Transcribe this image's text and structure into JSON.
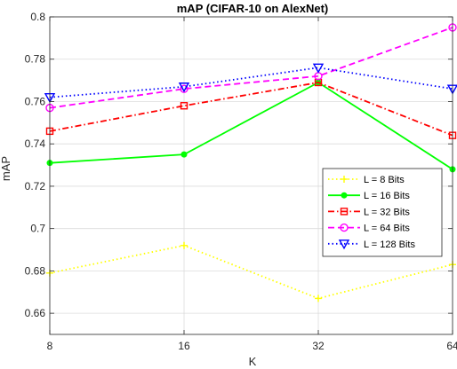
{
  "chart_data": {
    "type": "line",
    "title": "mAP (CIFAR-10 on AlexNet)",
    "xlabel": "K",
    "ylabel": "mAP",
    "categories": [
      "8",
      "16",
      "32",
      "64"
    ],
    "ylim": [
      0.65,
      0.8
    ],
    "yticks": [
      "0.66",
      "0.68",
      "0.7",
      "0.72",
      "0.74",
      "0.76",
      "0.78",
      "0.8"
    ],
    "grid": true,
    "legend_position": "right",
    "series": [
      {
        "name": "L = 8 Bits",
        "values": [
          0.679,
          0.692,
          0.667,
          0.683
        ],
        "color": "#ffff00",
        "dash": "dotted",
        "marker": "plus"
      },
      {
        "name": "L = 16 Bits",
        "values": [
          0.731,
          0.735,
          0.769,
          0.728
        ],
        "color": "#00ff00",
        "dash": "solid",
        "marker": "dot"
      },
      {
        "name": "L = 32 Bits",
        "values": [
          0.746,
          0.758,
          0.769,
          0.744
        ],
        "color": "#ff0000",
        "dash": "dashdot",
        "marker": "square"
      },
      {
        "name": "L = 64 Bits",
        "values": [
          0.757,
          0.766,
          0.772,
          0.795
        ],
        "color": "#ff00ff",
        "dash": "dashed",
        "marker": "circle"
      },
      {
        "name": "L = 128 Bits",
        "values": [
          0.762,
          0.767,
          0.776,
          0.766
        ],
        "color": "#0000ff",
        "dash": "dotted",
        "marker": "triangle-down"
      }
    ]
  }
}
